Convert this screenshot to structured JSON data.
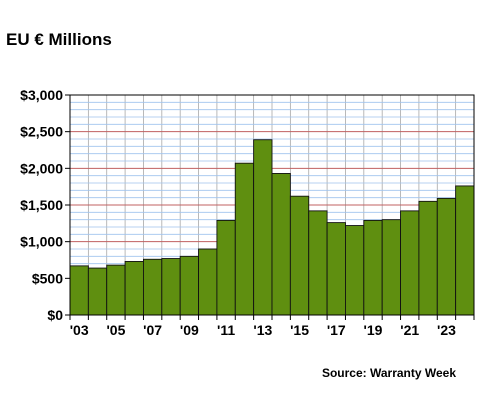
{
  "title": "EU € Millions",
  "source": "Source: Warranty Week",
  "colors": {
    "bar_fill": "#5f8f10",
    "bar_stroke": "#111111",
    "grid_minor": "#9fc3ee",
    "grid_major": "#c06060",
    "grid_vertical": "#a8a8a8",
    "plot_background": "#ffffff"
  },
  "chart_data": {
    "type": "bar",
    "title": "EU € Millions",
    "xlabel": "",
    "ylabel": "",
    "ylim": [
      0,
      3000
    ],
    "y_ticks": [
      0,
      500,
      1000,
      1500,
      2000,
      2500,
      3000
    ],
    "y_tick_labels": [
      "$0",
      "$500",
      "$1,000",
      "$1,500",
      "$2,000",
      "$2,500",
      "$3,000"
    ],
    "categories": [
      "2003",
      "2004",
      "2005",
      "2006",
      "2007",
      "2008",
      "2009",
      "2010",
      "2011",
      "2012",
      "2013",
      "2014",
      "2015",
      "2016",
      "2017",
      "2018",
      "2019",
      "2020",
      "2021",
      "2022",
      "2023",
      "2024"
    ],
    "x_tick_labels": [
      "'03",
      "",
      "'05",
      "",
      "'07",
      "",
      "'09",
      "",
      "'11",
      "",
      "'13",
      "",
      "'15",
      "",
      "'17",
      "",
      "'19",
      "",
      "'21",
      "",
      "'23",
      ""
    ],
    "values": [
      670,
      640,
      680,
      730,
      760,
      770,
      800,
      900,
      1290,
      2070,
      2390,
      1930,
      1620,
      1420,
      1260,
      1220,
      1290,
      1300,
      1420,
      1550,
      1590,
      1760
    ],
    "grid": true,
    "legend": "none"
  }
}
